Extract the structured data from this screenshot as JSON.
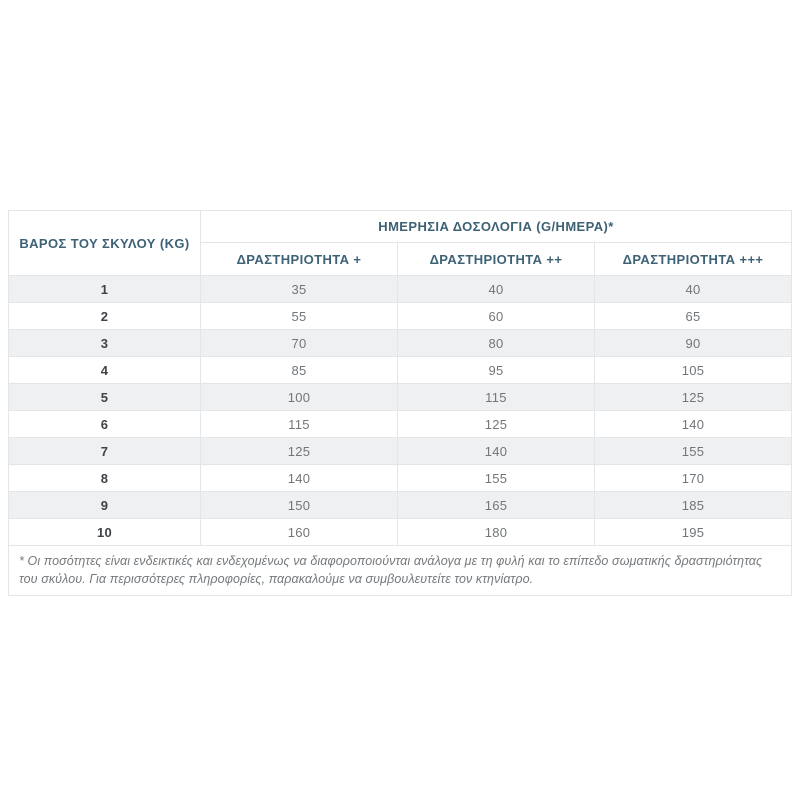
{
  "colors": {
    "header_text": "#3d6175",
    "stripe_row_bg": "#eef0f1",
    "data_text": "#71767a",
    "weight_text": "#3e4348",
    "border": "#e3e6e8",
    "footnote_text": "#74797d",
    "page_bg": "#ffffff"
  },
  "table": {
    "weight_header": "ΒΑΡΟΣ ΤΟΥ ΣΚΥΛΟΥ (KG)",
    "dosage_header": "ΗΜΕΡΗΣΙΑ ΔΟΣΟΛΟΓΙΑ (G/ΗΜΕΡΑ)*",
    "activity_headers": [
      "ΔΡΑΣΤΗΡΙΟΤΗΤΑ +",
      "ΔΡΑΣΤΗΡΙΟΤΗΤΑ ++",
      "ΔΡΑΣΤΗΡΙΟΤΗΤΑ +++"
    ],
    "rows": [
      {
        "weight_kg": "1",
        "values": [
          "35",
          "40",
          "40"
        ]
      },
      {
        "weight_kg": "2",
        "values": [
          "55",
          "60",
          "65"
        ]
      },
      {
        "weight_kg": "3",
        "values": [
          "70",
          "80",
          "90"
        ]
      },
      {
        "weight_kg": "4",
        "values": [
          "85",
          "95",
          "105"
        ]
      },
      {
        "weight_kg": "5",
        "values": [
          "100",
          "115",
          "125"
        ]
      },
      {
        "weight_kg": "6",
        "values": [
          "115",
          "125",
          "140"
        ]
      },
      {
        "weight_kg": "7",
        "values": [
          "125",
          "140",
          "155"
        ]
      },
      {
        "weight_kg": "8",
        "values": [
          "140",
          "155",
          "170"
        ]
      },
      {
        "weight_kg": "9",
        "values": [
          "150",
          "165",
          "185"
        ]
      },
      {
        "weight_kg": "10",
        "values": [
          "160",
          "180",
          "195"
        ]
      }
    ],
    "footnote": "* Οι ποσότητες είναι ενδεικτικές και ενδεχομένως να διαφοροποιούνται ανάλογα με τη φυλή και το επίπεδο σωματικής δραστηριότητας του σκύλου. Για περισσότερες πληροφορίες, παρακαλούμε να συμβουλευτείτε τον κτηνίατρο."
  },
  "chart_data": {
    "type": "table",
    "title": "ΗΜΕΡΗΣΙΑ ΔΟΣΟΛΟΓΙΑ (G/ΗΜΕΡΑ)*",
    "xlabel": "ΒΑΡΟΣ ΤΟΥ ΣΚΥΛΟΥ (KG)",
    "ylabel": "G/ΗΜΕΡΑ",
    "categories": [
      1,
      2,
      3,
      4,
      5,
      6,
      7,
      8,
      9,
      10
    ],
    "series": [
      {
        "name": "ΔΡΑΣΤΗΡΙΟΤΗΤΑ +",
        "values": [
          35,
          55,
          70,
          85,
          100,
          115,
          125,
          140,
          150,
          160
        ]
      },
      {
        "name": "ΔΡΑΣΤΗΡΙΟΤΗΤΑ ++",
        "values": [
          40,
          60,
          80,
          95,
          115,
          125,
          140,
          155,
          165,
          180
        ]
      },
      {
        "name": "ΔΡΑΣΤΗΡΙΟΤΗΤΑ +++",
        "values": [
          40,
          65,
          90,
          105,
          125,
          140,
          155,
          170,
          185,
          195
        ]
      }
    ],
    "annotations": [
      "* Οι ποσότητες είναι ενδεικτικές και ενδεχομένως να διαφοροποιούνται ανάλογα με τη φυλή και το επίπεδο σωματικής δραστηριότητας του σκύλου. Για περισσότερες πληροφορίες, παρακαλούμε να συμβουλευτείτε τον κτηνίατρο."
    ]
  }
}
